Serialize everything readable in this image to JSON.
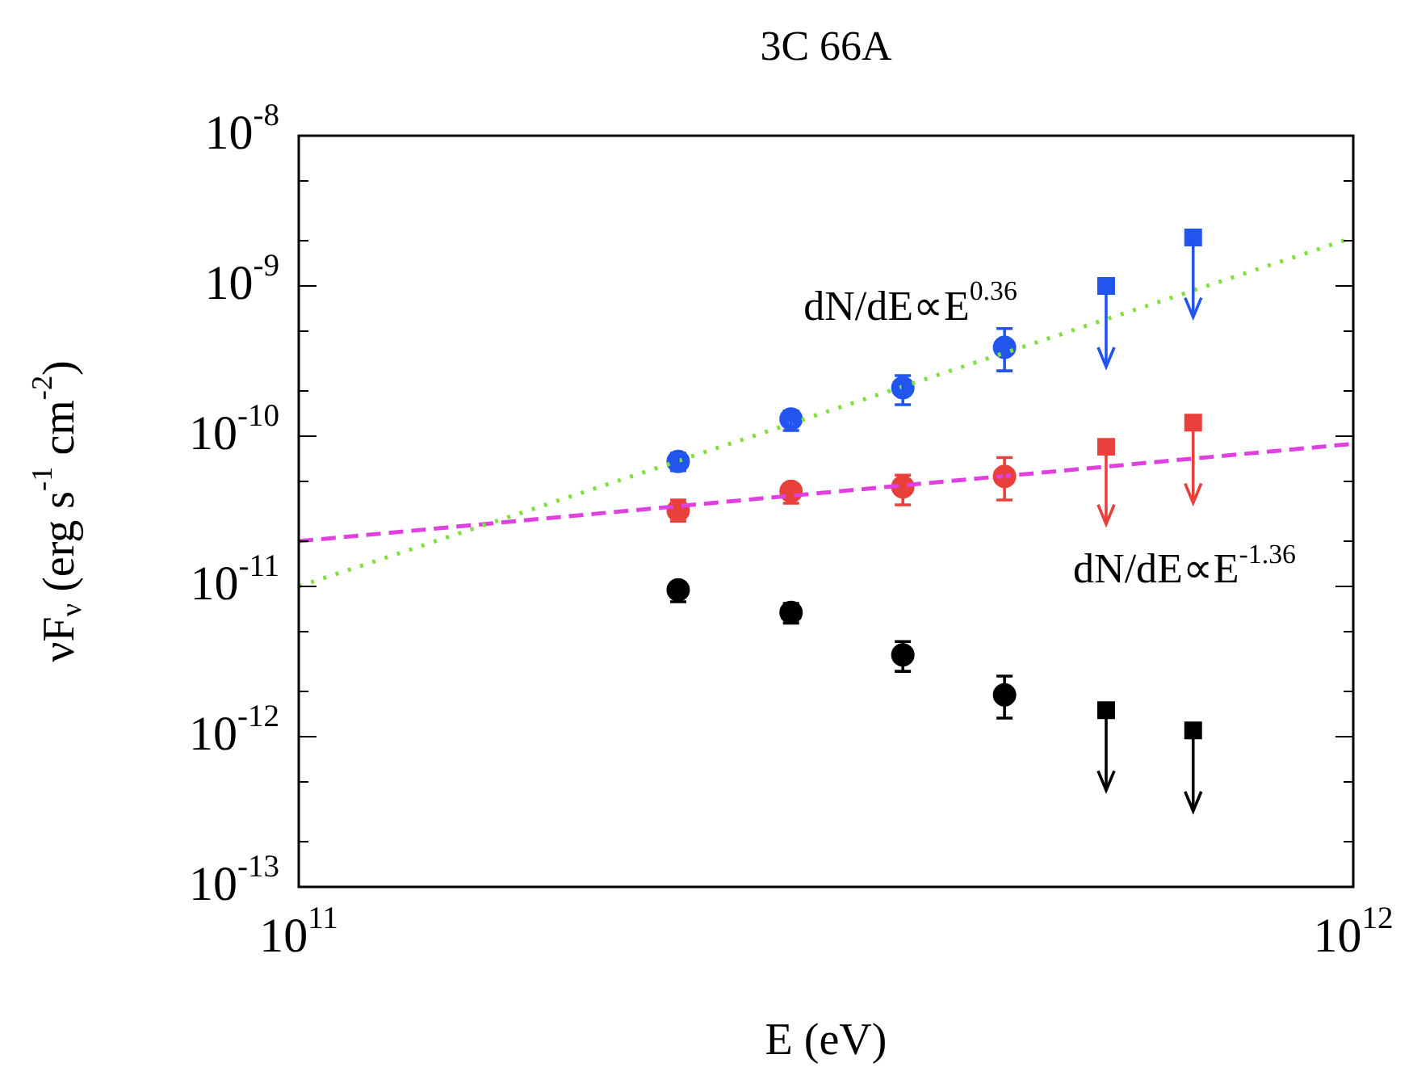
{
  "chart_data": {
    "type": "scatter",
    "title": "3C 66A",
    "xlabel": "E (eV)",
    "ylabel": "νF$_{ν}$ (erg s$^{-1}$ cm$^{-2}$)",
    "log": "xy",
    "xlim": [
      100000000000.0,
      1000000000000.0
    ],
    "xticks": [
      {
        "value": 100000000000.0,
        "label": "10$^{11}$"
      },
      {
        "value": 1000000000000.0,
        "label": "10$^{12}$"
      }
    ],
    "ylim": [
      1e-13,
      1e-08
    ],
    "yticks": [
      {
        "value": 1e-13,
        "label": "10$^{-13}$"
      },
      {
        "value": 2e-13,
        "label": null
      },
      {
        "value": 5e-13,
        "label": null
      },
      {
        "value": 1e-12,
        "label": "10$^{-12}$"
      },
      {
        "value": 2e-12,
        "label": null
      },
      {
        "value": 5e-12,
        "label": null
      },
      {
        "value": 1e-11,
        "label": "10$^{-11}$"
      },
      {
        "value": 2e-11,
        "label": null
      },
      {
        "value": 5e-11,
        "label": null
      },
      {
        "value": 1e-10,
        "label": "10$^{-10}$"
      },
      {
        "value": 2e-10,
        "label": null
      },
      {
        "value": 5e-10,
        "label": null
      },
      {
        "value": 1e-09,
        "label": "10$^{-9}$"
      },
      {
        "value": 2e-09,
        "label": null
      },
      {
        "value": 5e-09,
        "label": null
      },
      {
        "value": 1e-08,
        "label": "10$^{-8}$"
      }
    ],
    "series": [
      {
        "type": "line",
        "color": "#80e040",
        "marker": "none",
        "line_style": "dotted",
        "x": [
          100000000000.0,
          1000000000000.0
        ],
        "values": [
          1e-11,
          2.1e-09
        ]
      },
      {
        "type": "line",
        "color": "#e040e0",
        "marker": "none",
        "line_style": "dashed",
        "x": [
          100000000000.0,
          1000000000000.0
        ],
        "values": [
          2e-11,
          8.9e-11
        ]
      },
      {
        "type": "scatter",
        "color": "#2255ee",
        "marker": "circle",
        "x": [
          229000000000.0,
          293000000000.0,
          374000000000.0,
          467000000000.0
        ],
        "values": [
          6.8e-11,
          1.3e-10,
          2.1e-10,
          3.9e-10
        ],
        "errors": [
          [
            5.9e-11,
            7.7e-11
          ],
          [
            1.09e-10,
            1.47e-10
          ],
          [
            1.62e-10,
            2.53e-10
          ],
          [
            2.72e-10,
            5.2e-10
          ]
        ]
      },
      {
        "type": "scatter",
        "color": "#2255ee",
        "marker": "square",
        "x": [
          583000000000.0,
          705000000000.0
        ],
        "values": [
          1e-09,
          2.1e-09
        ],
        "errors": [
          [
            2.9e-10,
            1e-09
          ],
          [
            6.2e-10,
            2.1e-09
          ]
        ]
      },
      {
        "type": "scatter",
        "color": "#e8403a",
        "marker": "circle",
        "x": [
          229000000000.0,
          293000000000.0,
          374000000000.0,
          467000000000.0
        ],
        "values": [
          3.2e-11,
          4.3e-11,
          4.6e-11,
          5.4e-11
        ],
        "errors": [
          [
            2.72e-11,
            3.76e-11
          ],
          [
            3.58e-11,
            4.8e-11
          ],
          [
            3.49e-11,
            5.5e-11
          ],
          [
            3.76e-11,
            7.2e-11
          ]
        ]
      },
      {
        "type": "scatter",
        "color": "#e8403a",
        "marker": "square",
        "x": [
          583000000000.0,
          705000000000.0
        ],
        "values": [
          8.5e-11,
          1.23e-10
        ],
        "errors": [
          [
            2.6e-11,
            8.5e-11
          ],
          [
            3.6e-11,
            1.23e-10
          ]
        ]
      },
      {
        "type": "scatter",
        "color": "#000000",
        "marker": "circle",
        "x": [
          229000000000.0,
          293000000000.0,
          374000000000.0,
          467000000000.0
        ],
        "values": [
          9.5e-12,
          6.7e-12,
          3.5e-12,
          1.9e-12
        ],
        "errors": [
          [
            7.9e-12,
            1.06e-11
          ],
          [
            5.7e-12,
            7.7e-12
          ],
          [
            2.72e-12,
            4.3e-12
          ],
          [
            1.33e-12,
            2.53e-12
          ]
        ]
      },
      {
        "type": "scatter",
        "color": "#000000",
        "marker": "square",
        "x": [
          583000000000.0,
          705000000000.0
        ],
        "values": [
          1.5e-12,
          1.1e-12
        ],
        "errors": [
          [
            4.4e-13,
            1.5e-12
          ],
          [
            3.2e-13,
            1.1e-12
          ]
        ]
      }
    ],
    "annotations": [
      "dN/dE∝E$^{0.36}$",
      "dN/dE∝E$^{-1.36}$"
    ]
  }
}
